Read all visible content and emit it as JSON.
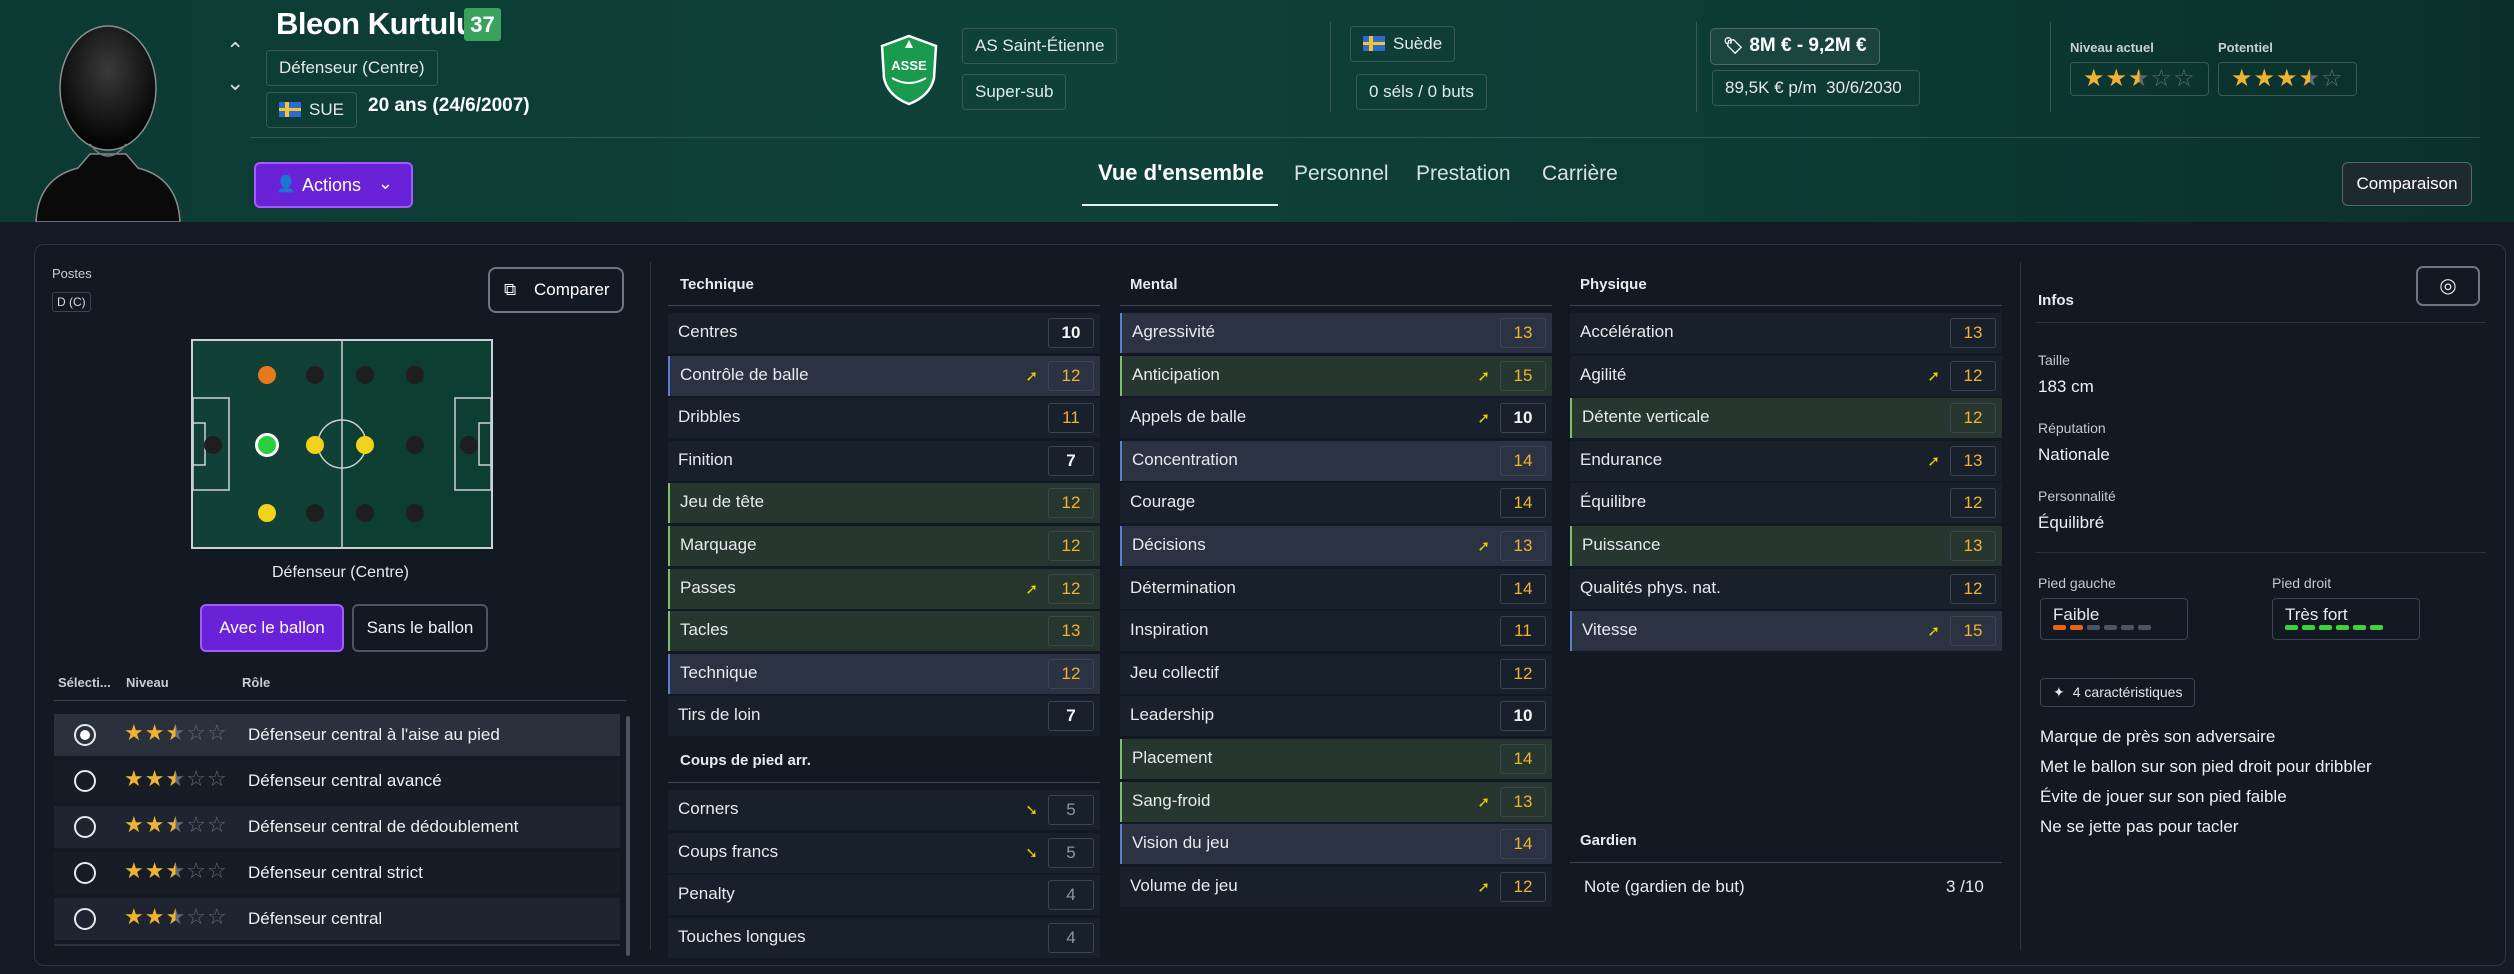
{
  "player": {
    "name": "Bleon Kurtuluş",
    "overall": "37",
    "position": "Défenseur (Centre)",
    "nation_code": "SUE",
    "age": "20 ans (24/6/2007)"
  },
  "club": {
    "name": "AS Saint-Étienne",
    "role": "Super-sub",
    "crest_text": "ASSE"
  },
  "national": {
    "country": "Suède",
    "caps": "0 séls / 0 buts"
  },
  "contract": {
    "value": "8M € - 9,2M €",
    "wage": "89,5K € p/m",
    "expiry": "30/6/2030"
  },
  "ratings": {
    "current_label": "Niveau actuel",
    "current_stars": 2.5,
    "potential_label": "Potentiel",
    "potential_stars": 3.5
  },
  "actions_label": "Actions",
  "tabs": [
    "Vue d'ensemble",
    "Personnel",
    "Prestation",
    "Carrière"
  ],
  "compare_top_label": "Comparaison",
  "left": {
    "postes_label": "Postes",
    "postes_tag": "D (C)",
    "compare_label": "Comparer",
    "position_label": "Défenseur (Centre)",
    "with_ball": "Avec le ballon",
    "without_ball": "Sans le ballon",
    "headers": {
      "select": "Sélecti...",
      "level": "Niveau",
      "role": "Rôle"
    },
    "roles": [
      {
        "name": "Défenseur central à l'aise au pied",
        "stars": 2.5,
        "selected": true
      },
      {
        "name": "Défenseur central avancé",
        "stars": 2.5,
        "selected": false
      },
      {
        "name": "Défenseur central de dédoublement",
        "stars": 2.5,
        "selected": false
      },
      {
        "name": "Défenseur central strict",
        "stars": 2.5,
        "selected": false
      },
      {
        "name": "Défenseur central",
        "stars": 2.5,
        "selected": false
      }
    ]
  },
  "technique": {
    "title": "Technique",
    "rows": [
      {
        "name": "Centres",
        "value": "10",
        "bg": "plain",
        "color": "white",
        "arrow": ""
      },
      {
        "name": "Contrôle de balle",
        "value": "12",
        "bg": "blue",
        "color": "orange",
        "arrow": "up"
      },
      {
        "name": "Dribbles",
        "value": "11",
        "bg": "plain",
        "color": "orange",
        "arrow": ""
      },
      {
        "name": "Finition",
        "value": "7",
        "bg": "plain",
        "color": "white",
        "arrow": ""
      },
      {
        "name": "Jeu de tête",
        "value": "12",
        "bg": "green",
        "color": "orange",
        "arrow": ""
      },
      {
        "name": "Marquage",
        "value": "12",
        "bg": "green",
        "color": "orange",
        "arrow": ""
      },
      {
        "name": "Passes",
        "value": "12",
        "bg": "green",
        "color": "orange",
        "arrow": "up"
      },
      {
        "name": "Tacles",
        "value": "13",
        "bg": "green",
        "color": "orange",
        "arrow": ""
      },
      {
        "name": "Technique",
        "value": "12",
        "bg": "blue",
        "color": "orange",
        "arrow": ""
      },
      {
        "name": "Tirs de loin",
        "value": "7",
        "bg": "plain",
        "color": "white",
        "arrow": ""
      }
    ]
  },
  "set_pieces": {
    "title": "Coups de pied arr.",
    "rows": [
      {
        "name": "Corners",
        "value": "5",
        "bg": "plain",
        "color": "gray",
        "arrow": "down"
      },
      {
        "name": "Coups francs",
        "value": "5",
        "bg": "plain",
        "color": "gray",
        "arrow": "down"
      },
      {
        "name": "Penalty",
        "value": "4",
        "bg": "plain",
        "color": "gray",
        "arrow": ""
      },
      {
        "name": "Touches longues",
        "value": "4",
        "bg": "plain",
        "color": "gray",
        "arrow": ""
      }
    ]
  },
  "mental": {
    "title": "Mental",
    "rows": [
      {
        "name": "Agressivité",
        "value": "13",
        "bg": "blue",
        "color": "orange",
        "arrow": ""
      },
      {
        "name": "Anticipation",
        "value": "15",
        "bg": "green",
        "color": "orange",
        "arrow": "up"
      },
      {
        "name": "Appels de balle",
        "value": "10",
        "bg": "plain",
        "color": "white",
        "arrow": "up"
      },
      {
        "name": "Concentration",
        "value": "14",
        "bg": "blue",
        "color": "orange",
        "arrow": ""
      },
      {
        "name": "Courage",
        "value": "14",
        "bg": "plain",
        "color": "orange",
        "arrow": ""
      },
      {
        "name": "Décisions",
        "value": "13",
        "bg": "blue",
        "color": "orange",
        "arrow": "up"
      },
      {
        "name": "Détermination",
        "value": "14",
        "bg": "plain",
        "color": "orange",
        "arrow": ""
      },
      {
        "name": "Inspiration",
        "value": "11",
        "bg": "plain",
        "color": "orange",
        "arrow": ""
      },
      {
        "name": "Jeu collectif",
        "value": "12",
        "bg": "plain",
        "color": "orange",
        "arrow": ""
      },
      {
        "name": "Leadership",
        "value": "10",
        "bg": "plain",
        "color": "white",
        "arrow": ""
      },
      {
        "name": "Placement",
        "value": "14",
        "bg": "green",
        "color": "orange",
        "arrow": ""
      },
      {
        "name": "Sang-froid",
        "value": "13",
        "bg": "green",
        "color": "orange",
        "arrow": "up"
      },
      {
        "name": "Vision du jeu",
        "value": "14",
        "bg": "blue",
        "color": "orange",
        "arrow": ""
      },
      {
        "name": "Volume de jeu",
        "value": "12",
        "bg": "plain",
        "color": "orange",
        "arrow": "up"
      }
    ]
  },
  "physique": {
    "title": "Physique",
    "rows": [
      {
        "name": "Accélération",
        "value": "13",
        "bg": "plain",
        "color": "orange",
        "arrow": ""
      },
      {
        "name": "Agilité",
        "value": "12",
        "bg": "plain",
        "color": "orange",
        "arrow": "up"
      },
      {
        "name": "Détente verticale",
        "value": "12",
        "bg": "green",
        "color": "orange",
        "arrow": ""
      },
      {
        "name": "Endurance",
        "value": "13",
        "bg": "plain",
        "color": "orange",
        "arrow": "up"
      },
      {
        "name": "Équilibre",
        "value": "12",
        "bg": "plain",
        "color": "orange",
        "arrow": ""
      },
      {
        "name": "Puissance",
        "value": "13",
        "bg": "green",
        "color": "orange",
        "arrow": ""
      },
      {
        "name": "Qualités phys. nat.",
        "value": "12",
        "bg": "plain",
        "color": "orange",
        "arrow": ""
      },
      {
        "name": "Vitesse",
        "value": "15",
        "bg": "blue",
        "color": "orange",
        "arrow": "up"
      }
    ]
  },
  "goalkeeper": {
    "title": "Gardien",
    "label": "Note (gardien de but)",
    "value": "3 /10"
  },
  "infos": {
    "title": "Infos",
    "height_label": "Taille",
    "height": "183 cm",
    "reputation_label": "Réputation",
    "reputation": "Nationale",
    "personality_label": "Personnalité",
    "personality": "Équilibré",
    "left_foot_label": "Pied gauche",
    "left_foot": "Faible",
    "left_foot_level": 2,
    "right_foot_label": "Pied droit",
    "right_foot": "Très fort",
    "right_foot_level": 6,
    "traits_badge": "4 caractéristiques",
    "traits": [
      "Marque de près son adversaire",
      "Met le ballon sur son pied droit pour dribbler",
      "Évite de jouer sur son pied faible",
      "Ne se jette pas pour tacler"
    ]
  },
  "colors": {
    "accent": "#6a22d8",
    "orange_attr": "#f0b232",
    "header_bg": "#0e4239"
  }
}
